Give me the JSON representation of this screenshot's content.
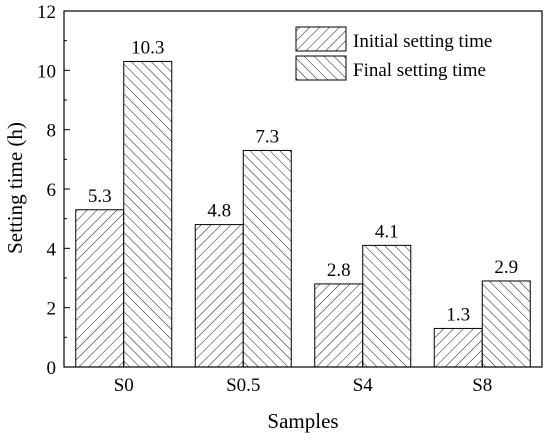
{
  "chart_data": {
    "type": "bar",
    "title": "",
    "xlabel": "Samples",
    "ylabel": "Setting time (h)",
    "categories": [
      "S0",
      "S0.5",
      "S4",
      "S8"
    ],
    "series": [
      {
        "name": "Initial setting time",
        "values": [
          5.3,
          4.8,
          2.8,
          1.3
        ],
        "labels": [
          "5.3",
          "4.8",
          "2.8",
          "1.3"
        ],
        "pattern": "hatch-forward"
      },
      {
        "name": "Final setting time",
        "values": [
          10.3,
          7.3,
          4.1,
          2.9
        ],
        "labels": [
          "10.3",
          "7.3",
          "4.1",
          "2.9"
        ],
        "pattern": "hatch-backward"
      }
    ],
    "ylim": [
      0,
      12
    ],
    "yticks": [
      "0",
      "2",
      "4",
      "6",
      "8",
      "10",
      "12"
    ],
    "grid": false,
    "legend_position": "top-right",
    "colors": {
      "bar_stroke": "#000000",
      "hatch": "#000000",
      "background": "#ffffff"
    }
  }
}
